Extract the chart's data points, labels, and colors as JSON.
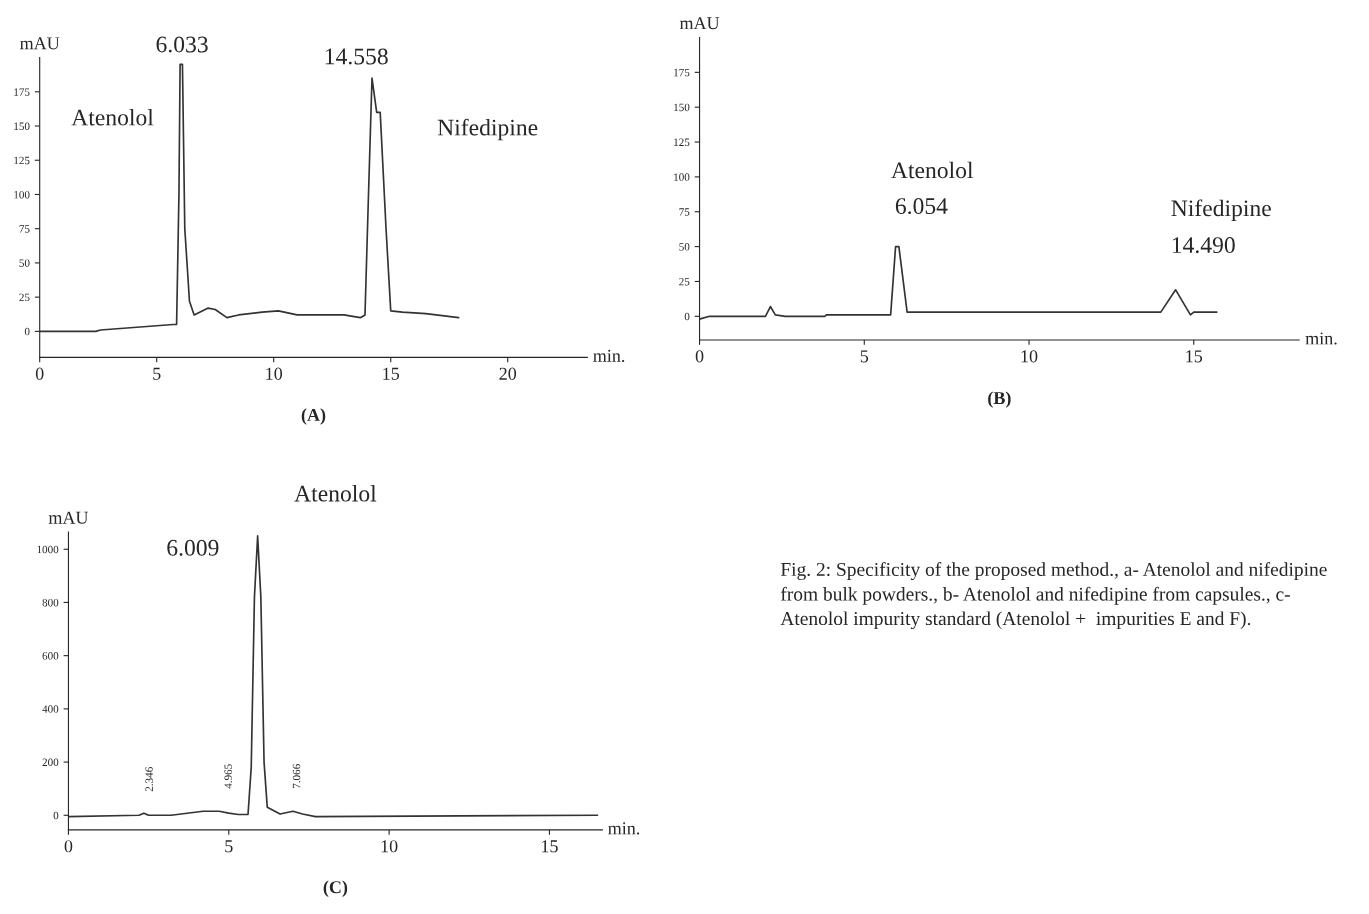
{
  "chart_data": [
    {
      "type": "line",
      "xlabel": "min.",
      "ylabel": "mAU",
      "xlim": [
        0,
        23.4
      ],
      "ylim": [
        -19,
        200
      ],
      "xticks": [
        0,
        5,
        10,
        15,
        20
      ],
      "yticks": [
        0,
        25,
        50,
        75,
        100,
        125,
        150,
        175
      ],
      "x": [
        0,
        2.4,
        2.6,
        5.7,
        5.85,
        5.95,
        6.0,
        6.1,
        6.2,
        6.4,
        6.6,
        7.2,
        7.5,
        8.0,
        8.5,
        9.5,
        10.2,
        11,
        13,
        13.7,
        13.9,
        14.05,
        14.2,
        14.4,
        14.55,
        14.8,
        15.0,
        15.5,
        16.5,
        17.9
      ],
      "series": [
        {
          "color": "#333333",
          "values": [
            0,
            0,
            1,
            5,
            5,
            100,
            195,
            195,
            75,
            22,
            12,
            17,
            16,
            10,
            12,
            14,
            15,
            12,
            12,
            10,
            12,
            100,
            185,
            160,
            160,
            75,
            15,
            14,
            13,
            10
          ]
        }
      ],
      "annotations": [
        "6.033",
        "14.558",
        "Atenolol",
        "Nifedipine",
        "(A)"
      ]
    },
    {
      "type": "line",
      "xlabel": "min.",
      "ylabel": "mAU",
      "xlim": [
        0,
        18.2
      ],
      "ylim": [
        -17,
        200
      ],
      "xticks": [
        0,
        5,
        10,
        15
      ],
      "yticks": [
        0,
        25,
        50,
        75,
        100,
        125,
        150,
        175
      ],
      "x": [
        0,
        0.3,
        2.0,
        2.15,
        2.3,
        2.6,
        3.8,
        3.85,
        5.8,
        5.95,
        6.05,
        6.3,
        14.0,
        14.45,
        14.9,
        15.0,
        15.7
      ],
      "series": [
        {
          "color": "#333333",
          "values": [
            -2,
            0,
            0,
            7,
            1,
            0,
            0,
            1,
            1,
            50,
            50,
            3,
            3,
            19,
            1,
            3,
            3
          ]
        }
      ],
      "annotations": [
        "Atenolol",
        "6.054",
        "Nifedipine",
        "14.490",
        "(B)"
      ]
    },
    {
      "type": "line",
      "title": "Atenolol",
      "xlabel": "min.",
      "ylabel": "mAU",
      "xlim": [
        0,
        16.65
      ],
      "ylim": [
        -55,
        1065
      ],
      "xticks": [
        0,
        5,
        10,
        15
      ],
      "yticks": [
        0,
        200,
        400,
        600,
        800,
        1000
      ],
      "x": [
        0,
        2.2,
        2.35,
        2.5,
        3.2,
        4.2,
        4.7,
        5.0,
        5.3,
        5.6,
        5.7,
        5.8,
        5.9,
        6.0,
        6.1,
        6.2,
        6.6,
        7.0,
        7.3,
        7.7,
        16.5
      ],
      "series": [
        {
          "color": "#333333",
          "values": [
            -5,
            0,
            8,
            0,
            0,
            15,
            15,
            8,
            3,
            3,
            180,
            820,
            1050,
            820,
            200,
            30,
            5,
            15,
            5,
            -5,
            0
          ]
        }
      ],
      "annotations": [
        "6.009",
        "2.346",
        "4.965",
        "7.066",
        "(C)"
      ]
    },
    {
      "type": "other",
      "annotations": [
        "Fig. 2: Specificity of the proposed method., a- Atenolol and nifedipine from bulk powders., b- Atenolol and nifedipine from capsules., c- Atenolol impurity standard (Atenolol +  impurities E and F)."
      ]
    }
  ]
}
